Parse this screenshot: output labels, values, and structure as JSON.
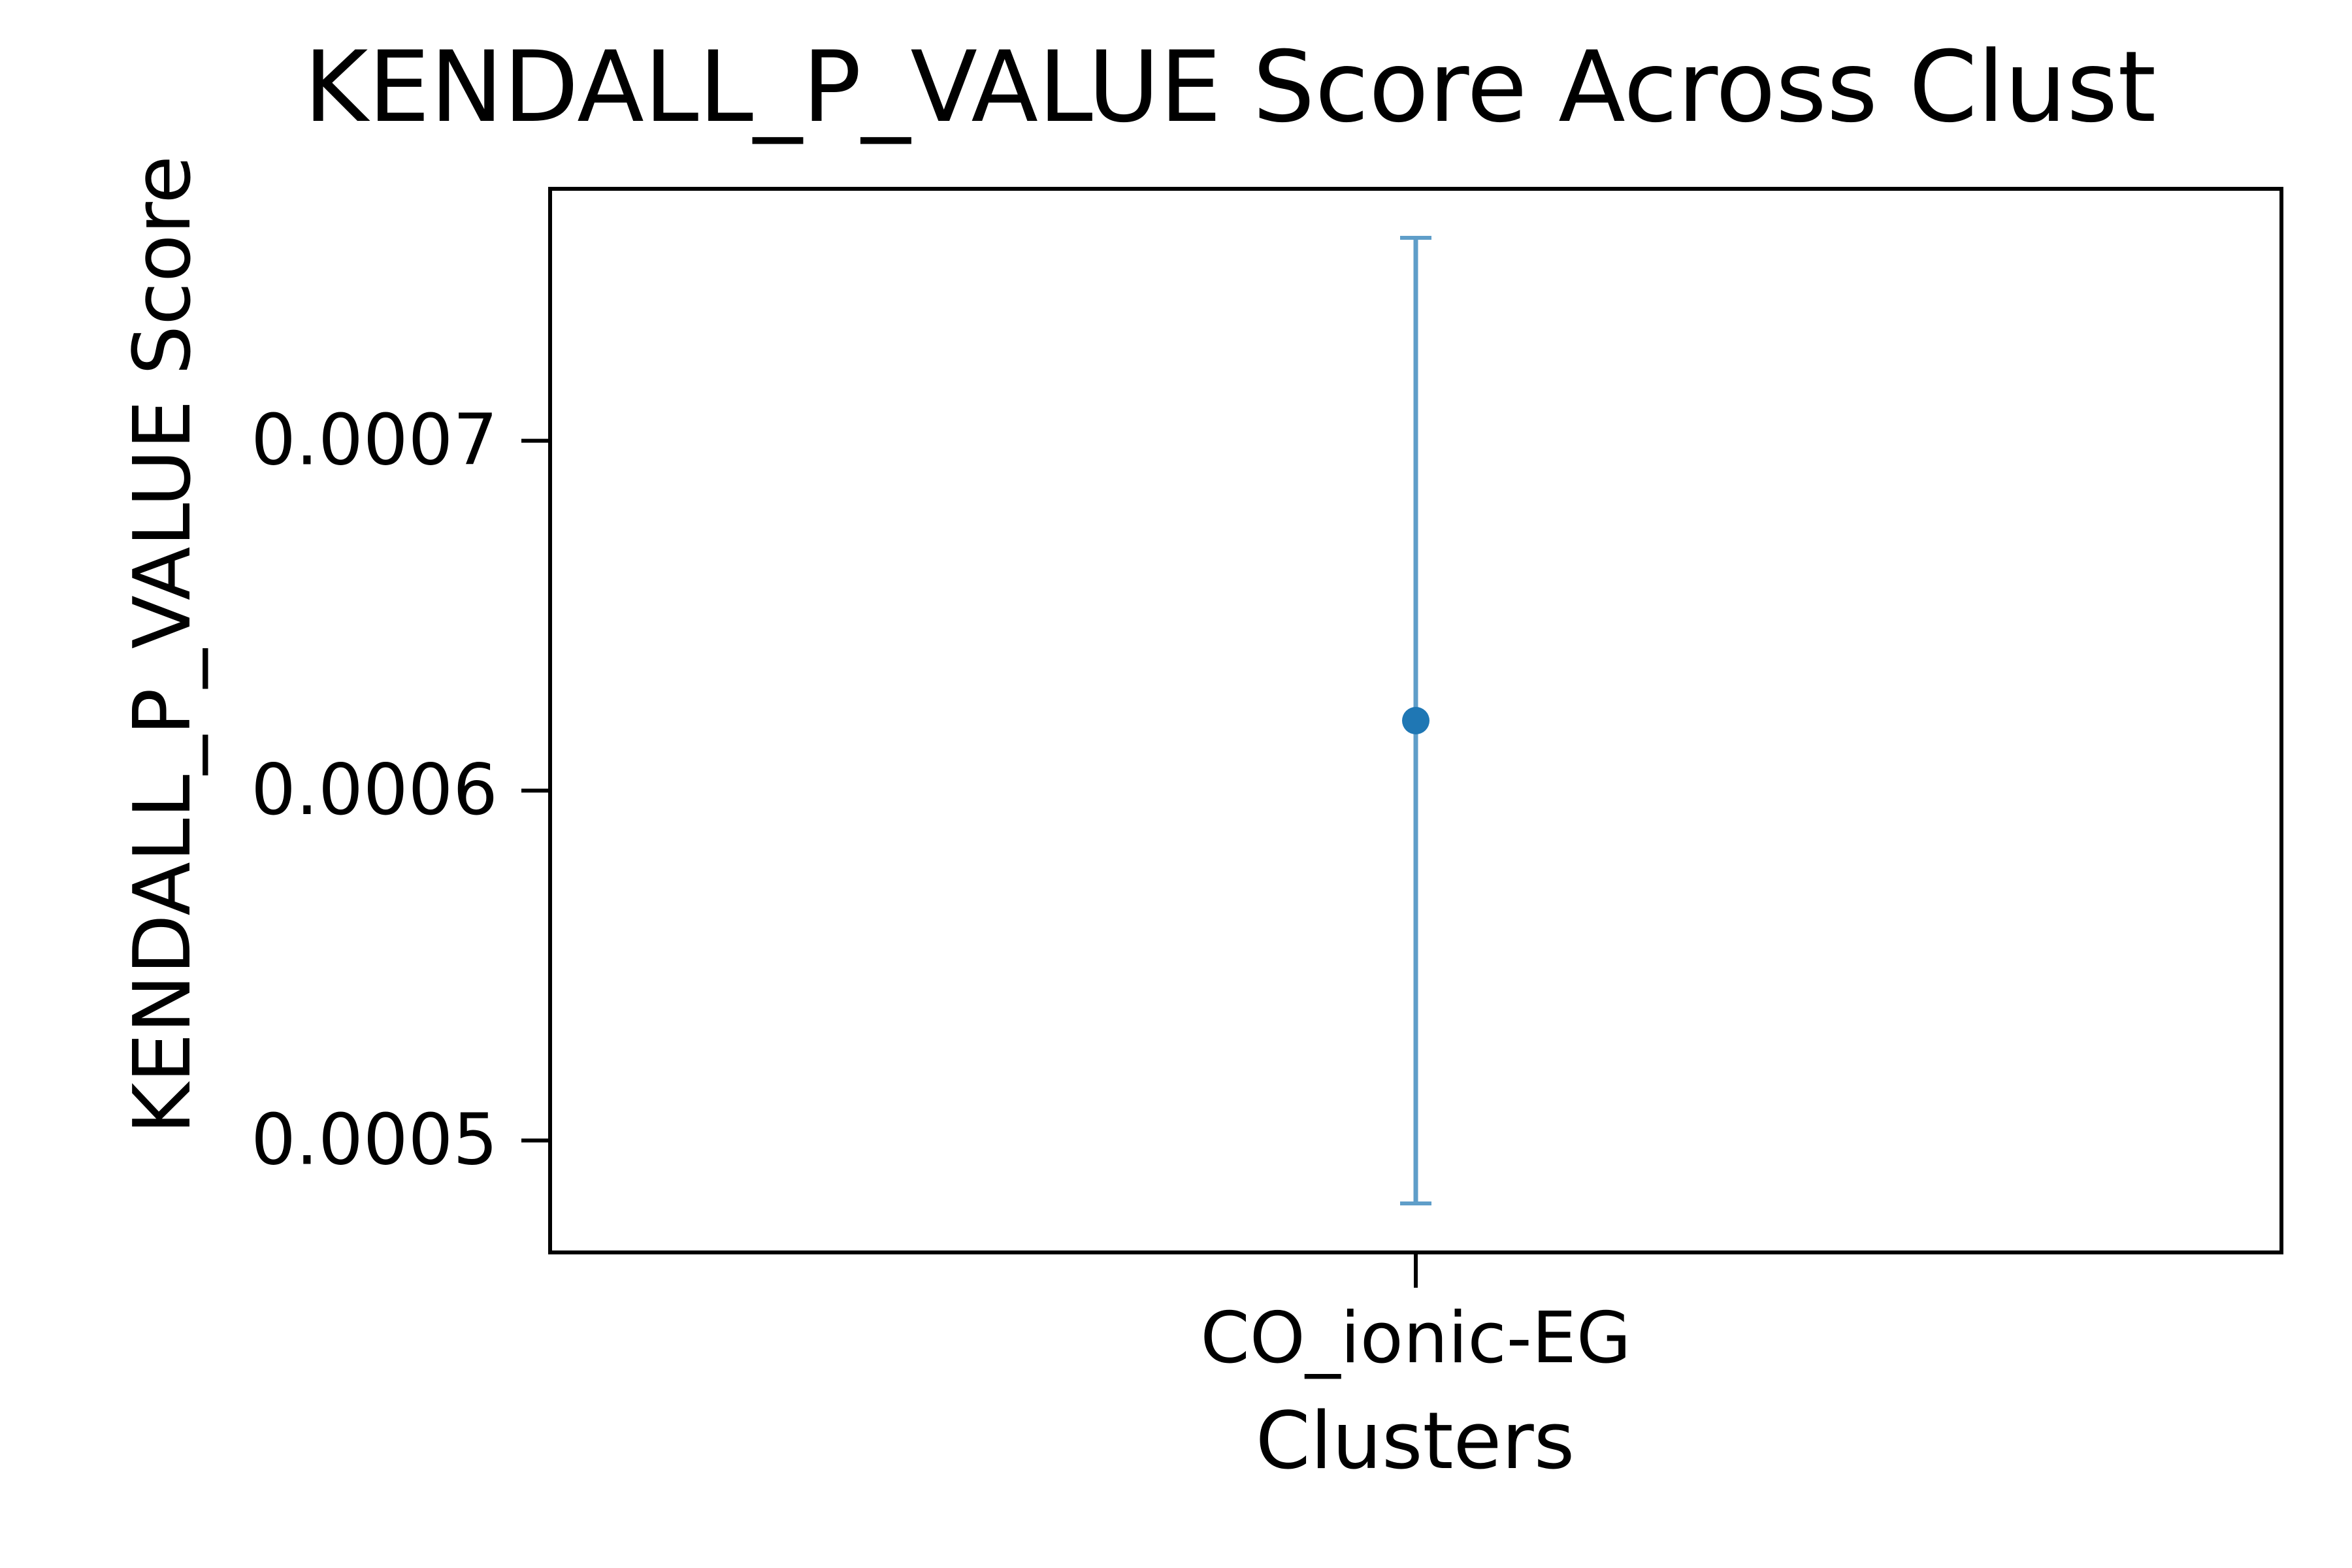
{
  "chart_data": {
    "type": "errorbar",
    "title": "KENDALL_P_VALUE Score Across Clust",
    "xlabel": "Clusters",
    "ylabel": "KENDALL_P_VALUE Score",
    "categories": [
      "CO_ionic-EG"
    ],
    "points": [
      {
        "category": "CO_ionic-EG",
        "value": 0.00062,
        "lower": 0.000482,
        "upper": 0.000758
      }
    ],
    "y_ticks": [
      {
        "value": 0.0005,
        "label": "0.0005"
      },
      {
        "value": 0.0006,
        "label": "0.0006"
      },
      {
        "value": 0.0007,
        "label": "0.0007"
      }
    ],
    "ylim": [
      0.000468,
      0.000772
    ],
    "grid": false,
    "colors": {
      "point": "#1f77b4",
      "errorbar": "#5f9ec9",
      "axes": "#000000"
    }
  }
}
